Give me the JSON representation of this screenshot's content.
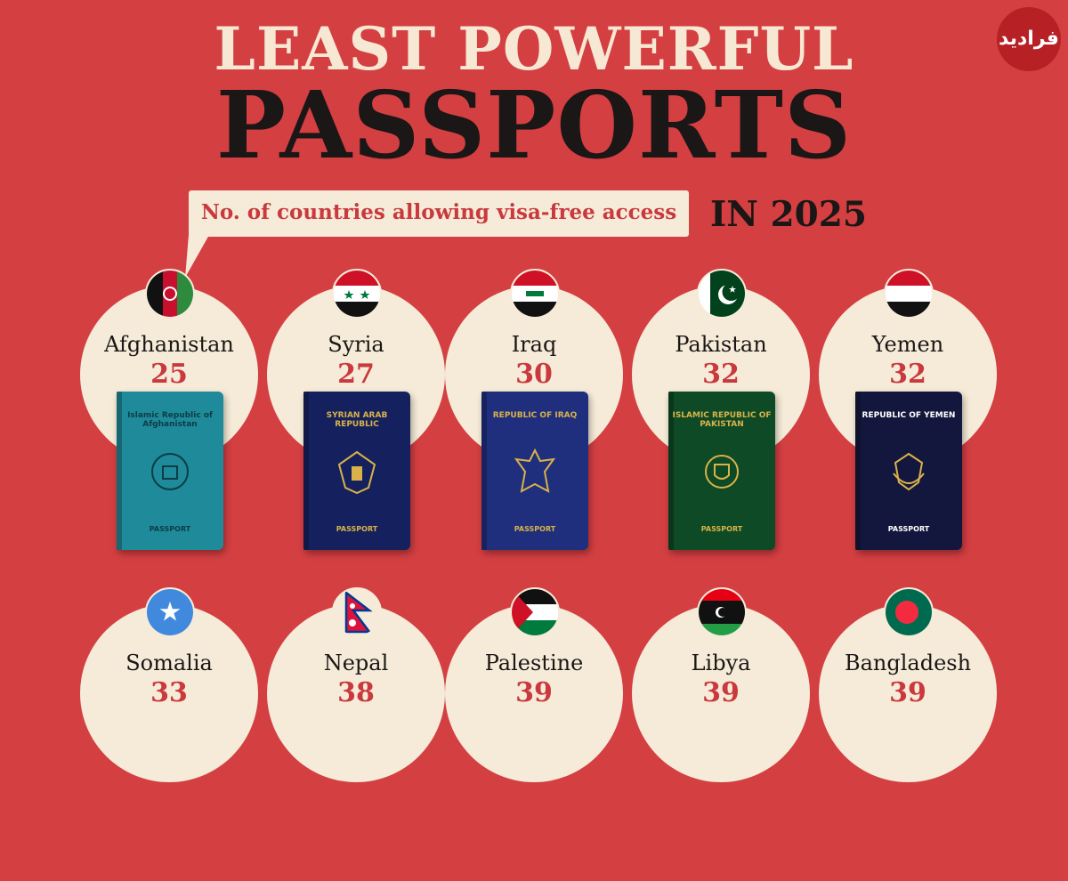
{
  "header": {
    "title_line1": "LEAST POWERFUL",
    "title_line2": "PASSPORTS",
    "subtitle": "No. of countries allowing visa-free access",
    "year_label": "IN 2025",
    "logo_text": "فرادید"
  },
  "chart_data": {
    "type": "bar",
    "title": "LEAST POWERFUL PASSPORTS IN 2025",
    "subtitle": "No. of countries allowing visa-free access",
    "categories": [
      "Afghanistan",
      "Syria",
      "Iraq",
      "Pakistan",
      "Yemen",
      "Somalia",
      "Nepal",
      "Palestine",
      "Libya",
      "Bangladesh"
    ],
    "values": [
      25,
      27,
      30,
      32,
      32,
      33,
      38,
      39,
      39,
      39
    ]
  },
  "cards": [
    {
      "country": "Afghanistan",
      "value": "25",
      "flag": "afghanistan-flag-icon",
      "passport_color": "#1f8a9a",
      "passport_title": "Islamic Republic of Afghanistan",
      "passport_label": "PASSPORT"
    },
    {
      "country": "Syria",
      "value": "27",
      "flag": "syria-flag-icon",
      "passport_color": "#14215e",
      "passport_title": "SYRIAN ARAB REPUBLIC",
      "passport_label": "PASSPORT"
    },
    {
      "country": "Iraq",
      "value": "30",
      "flag": "iraq-flag-icon",
      "passport_color": "#1f2f7e",
      "passport_title": "REPUBLIC OF IRAQ",
      "passport_label": "PASSPORT"
    },
    {
      "country": "Pakistan",
      "value": "32",
      "flag": "pakistan-flag-icon",
      "passport_color": "#0d4a25",
      "passport_title": "ISLAMIC REPUBLIC OF PAKISTAN",
      "passport_label": "PASSPORT"
    },
    {
      "country": "Yemen",
      "value": "32",
      "flag": "yemen-flag-icon",
      "passport_color": "#14173d",
      "passport_title": "REPUBLIC OF YEMEN",
      "passport_label": "PASSPORT"
    },
    {
      "country": "Somalia",
      "value": "33",
      "flag": "somalia-flag-icon"
    },
    {
      "country": "Nepal",
      "value": "38",
      "flag": "nepal-flag-icon"
    },
    {
      "country": "Palestine",
      "value": "39",
      "flag": "palestine-flag-icon"
    },
    {
      "country": "Libya",
      "value": "39",
      "flag": "libya-flag-icon"
    },
    {
      "country": "Bangladesh",
      "value": "39",
      "flag": "bangladesh-flag-icon"
    }
  ],
  "colors": {
    "background": "#d43f42",
    "cream": "#f6ebd8",
    "accent": "#c9393d",
    "dark": "#1b1717"
  }
}
